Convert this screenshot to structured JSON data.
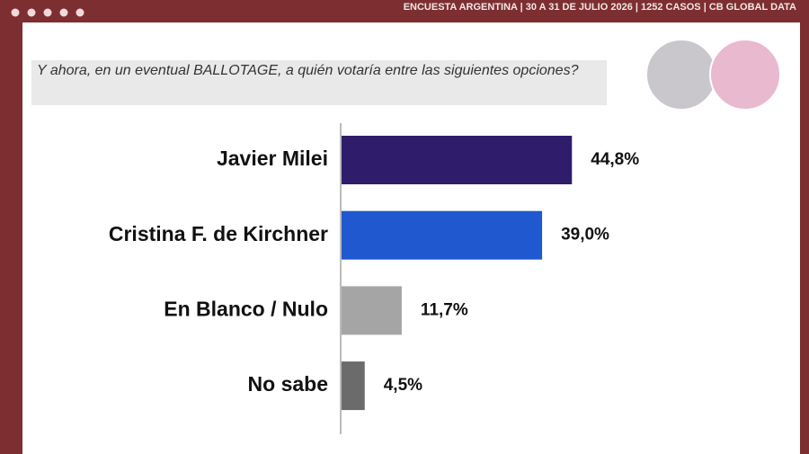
{
  "header": "ENCUESTA ARGENTINA | 30 A 31 DE JULIO 2026 | 1252 CASOS | CB GLOBAL DATA",
  "chart_data": {
    "type": "bar",
    "orientation": "horizontal",
    "title": "Y ahora, en un eventual BALLOTAGE, a quién votaría entre las siguientes opciones?",
    "categories": [
      "Javier Milei",
      "Cristina F. de Kirchner",
      "En Blanco / Nulo",
      "No sabe"
    ],
    "values": [
      44.8,
      39.0,
      11.7,
      4.5
    ],
    "value_labels": [
      "44,8%",
      "39,0%",
      "11,7%",
      "4,5%"
    ],
    "colors": [
      "#2f1d6b",
      "#1f58cf",
      "#a5a5a5",
      "#6b6b6b"
    ]
  }
}
